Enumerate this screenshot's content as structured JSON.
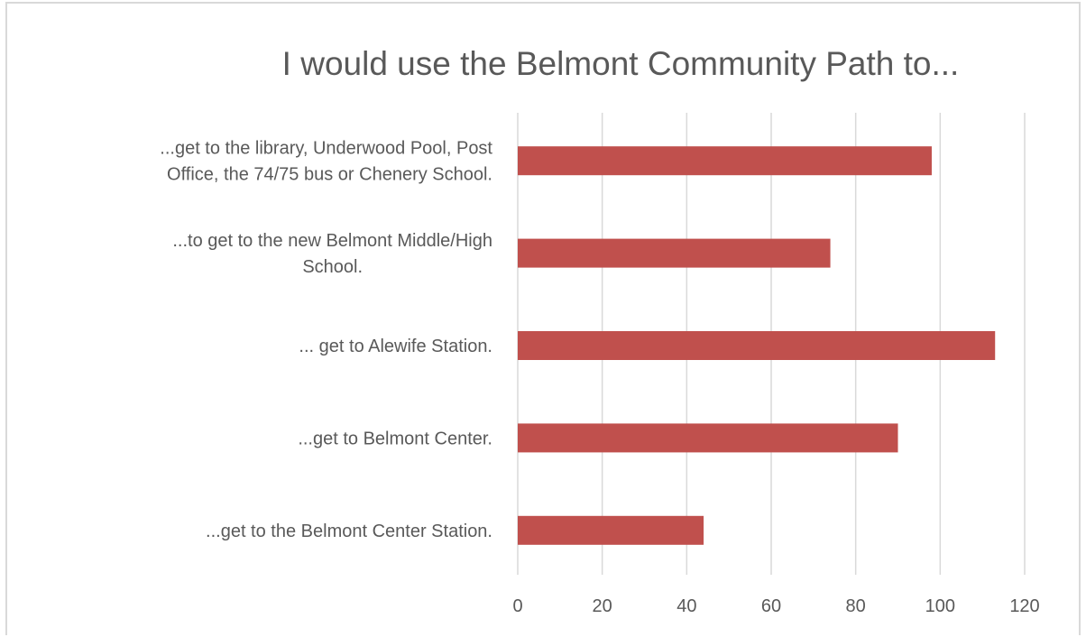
{
  "chart_data": {
    "type": "bar",
    "orientation": "horizontal",
    "title": "I would use the Belmont Community Path to...",
    "xlabel": "",
    "ylabel": "",
    "categories": [
      [
        "...get to the library, Underwood Pool, Post",
        "Office, the 74/75 bus or Chenery School."
      ],
      [
        "...to get to the new Belmont Middle/High",
        "School."
      ],
      [
        "... get to Alewife Station."
      ],
      [
        "...get to Belmont Center."
      ],
      [
        "...get to the Belmont Center Station."
      ]
    ],
    "values": [
      98,
      74,
      113,
      90,
      44
    ],
    "xlim": [
      0,
      120
    ],
    "xticks": [
      "0",
      "20",
      "40",
      "60",
      "80",
      "100",
      "120"
    ],
    "grid": "vertical",
    "legend": "none",
    "bar_color": "#c0504d",
    "gridline_color": "#d9d9d9",
    "text_color": "#595959"
  }
}
